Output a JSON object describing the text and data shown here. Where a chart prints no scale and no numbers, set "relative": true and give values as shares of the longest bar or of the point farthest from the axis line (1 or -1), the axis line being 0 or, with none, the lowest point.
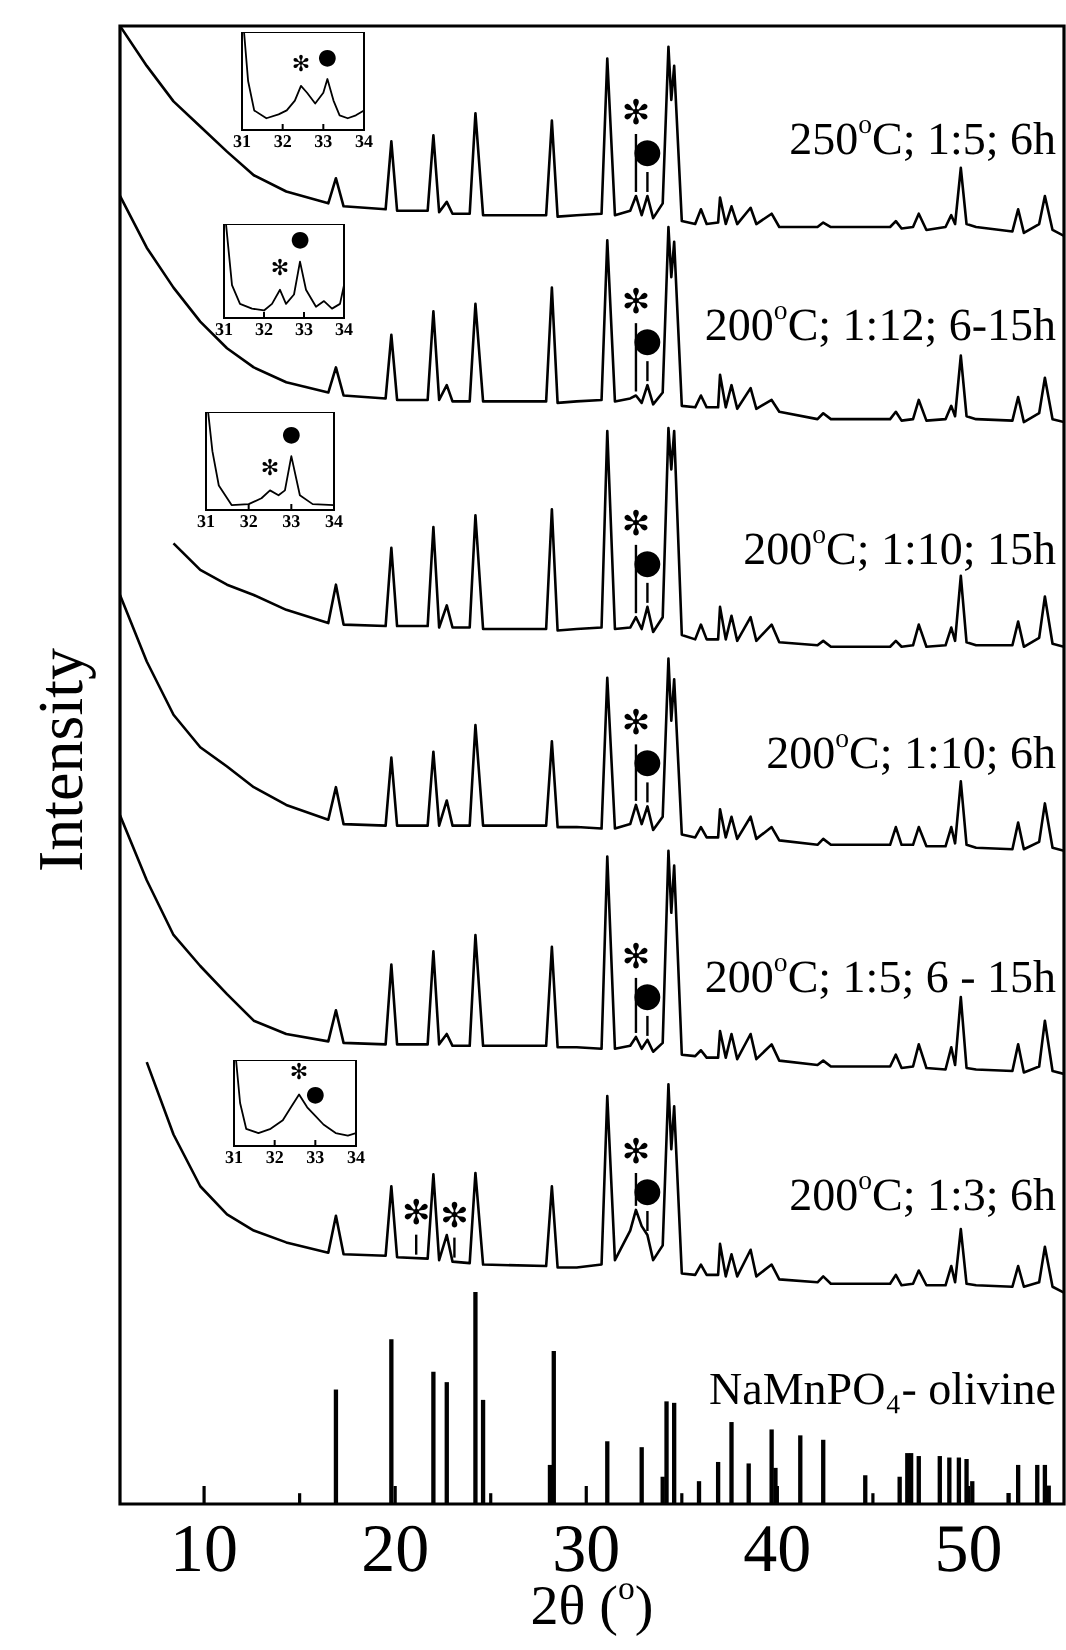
{
  "chart_data": [
    {
      "type": "line",
      "relative": true,
      "xlabel": "2θ ($^{o}$)",
      "ylabel": "Intensity",
      "legend": "right",
      "xlim": [
        5.6,
        55
      ],
      "xticks": [
        10,
        {
          "value": 15,
          "label": null
        },
        20,
        {
          "value": 25,
          "label": null
        },
        30,
        {
          "value": 35,
          "label": null
        },
        40,
        {
          "value": 45,
          "label": null
        },
        50
      ],
      "x": [
        5.6,
        7.0,
        8.4,
        9.8,
        11.2,
        12.6,
        14.3,
        16.5,
        16.9,
        17.3,
        19.5,
        19.8,
        20.1,
        21.7,
        22.0,
        22.3,
        22.7,
        23.0,
        23.9,
        24.2,
        24.6,
        27.9,
        28.2,
        28.5,
        29.5,
        30.8,
        31.1,
        31.5,
        32.3,
        32.6,
        32.9,
        33.2,
        33.5,
        34.0,
        34.3,
        34.45,
        34.6,
        35.0,
        35.7,
        36.0,
        36.3,
        36.9,
        37.0,
        37.3,
        37.6,
        37.9,
        38.6,
        38.9,
        39.7,
        40.1,
        42.1,
        42.4,
        42.8,
        45.9,
        46.2,
        46.5,
        47.1,
        47.4,
        47.8,
        48.8,
        49.1,
        49.3,
        49.6,
        49.9,
        50.4,
        52.3,
        52.6,
        52.9,
        53.7,
        54.0,
        54.4,
        55.0
      ],
      "series": [
        {
          "name": "250$^{o}$C; 1:5; 6h",
          "color": "#000000",
          "values": [
            1.0,
            0.973,
            0.949,
            0.932,
            0.915,
            0.899,
            0.888,
            0.88,
            0.897,
            0.878,
            0.876,
            0.922,
            0.875,
            0.875,
            0.926,
            0.874,
            0.881,
            0.873,
            0.873,
            0.941,
            0.872,
            0.872,
            0.936,
            0.871,
            0.872,
            0.873,
            0.978,
            0.872,
            0.875,
            0.885,
            0.872,
            0.885,
            0.87,
            0.88,
            0.986,
            0.95,
            0.973,
            0.868,
            0.866,
            0.876,
            0.866,
            0.867,
            0.884,
            0.866,
            0.878,
            0.866,
            0.877,
            0.866,
            0.873,
            0.864,
            0.864,
            0.867,
            0.864,
            0.864,
            0.868,
            0.863,
            0.864,
            0.873,
            0.862,
            0.864,
            0.872,
            0.866,
            0.904,
            0.866,
            0.864,
            0.861,
            0.876,
            0.86,
            0.866,
            0.885,
            0.862,
            0.858
          ]
        },
        {
          "name": "200$^{o}$C; 1:12; 6-15h",
          "color": "#000000",
          "values": [
            0.885,
            0.85,
            0.823,
            0.8,
            0.782,
            0.769,
            0.759,
            0.752,
            0.769,
            0.75,
            0.748,
            0.791,
            0.747,
            0.747,
            0.807,
            0.747,
            0.757,
            0.746,
            0.746,
            0.812,
            0.746,
            0.746,
            0.823,
            0.745,
            0.746,
            0.747,
            0.855,
            0.746,
            0.748,
            0.75,
            0.745,
            0.757,
            0.744,
            0.752,
            0.864,
            0.83,
            0.854,
            0.743,
            0.742,
            0.75,
            0.742,
            0.742,
            0.764,
            0.742,
            0.757,
            0.741,
            0.755,
            0.741,
            0.747,
            0.739,
            0.734,
            0.738,
            0.734,
            0.734,
            0.739,
            0.733,
            0.734,
            0.747,
            0.733,
            0.734,
            0.743,
            0.736,
            0.777,
            0.736,
            0.734,
            0.733,
            0.749,
            0.732,
            0.738,
            0.762,
            0.734,
            0.732
          ]
        },
        {
          "name": "200$^{o}$C; 1:10; 15h",
          "color": "#000000",
          "values": [
            null,
            null,
            0.65,
            0.632,
            0.622,
            0.615,
            0.605,
            0.596,
            0.622,
            0.595,
            0.594,
            0.647,
            0.594,
            0.594,
            0.661,
            0.593,
            0.608,
            0.593,
            0.593,
            0.669,
            0.592,
            0.592,
            0.673,
            0.591,
            0.592,
            0.593,
            0.726,
            0.592,
            0.593,
            0.6,
            0.592,
            0.607,
            0.59,
            0.6,
            0.728,
            0.7,
            0.726,
            0.588,
            0.585,
            0.595,
            0.585,
            0.585,
            0.607,
            0.585,
            0.601,
            0.584,
            0.6,
            0.584,
            0.595,
            0.583,
            0.581,
            0.584,
            0.58,
            0.58,
            0.584,
            0.58,
            0.581,
            0.595,
            0.58,
            0.581,
            0.593,
            0.584,
            0.628,
            0.583,
            0.581,
            0.581,
            0.597,
            0.58,
            0.586,
            0.614,
            0.582,
            0.58
          ]
        },
        {
          "name": "200$^{o}$C; 1:10; 6h",
          "color": "#000000",
          "values": [
            0.615,
            0.57,
            0.534,
            0.512,
            0.499,
            0.485,
            0.473,
            0.463,
            0.485,
            0.46,
            0.459,
            0.505,
            0.459,
            0.459,
            0.509,
            0.459,
            0.476,
            0.459,
            0.459,
            0.527,
            0.459,
            0.459,
            0.516,
            0.458,
            0.458,
            0.457,
            0.559,
            0.457,
            0.46,
            0.473,
            0.46,
            0.472,
            0.456,
            0.465,
            0.572,
            0.53,
            0.558,
            0.453,
            0.451,
            0.458,
            0.451,
            0.451,
            0.47,
            0.451,
            0.465,
            0.45,
            0.465,
            0.45,
            0.458,
            0.449,
            0.446,
            0.45,
            0.446,
            0.446,
            0.458,
            0.446,
            0.446,
            0.458,
            0.445,
            0.445,
            0.458,
            0.447,
            0.489,
            0.446,
            0.444,
            0.443,
            0.461,
            0.443,
            0.448,
            0.474,
            0.444,
            0.442
          ]
        },
        {
          "name": "200$^{o}$C; 1:5; 6 - 15h",
          "color": "#000000",
          "values": [
            0.466,
            0.422,
            0.385,
            0.364,
            0.345,
            0.327,
            0.318,
            0.313,
            0.334,
            0.312,
            0.311,
            0.365,
            0.311,
            0.311,
            0.374,
            0.311,
            0.318,
            0.31,
            0.31,
            0.385,
            0.31,
            0.31,
            0.377,
            0.309,
            0.309,
            0.308,
            0.438,
            0.308,
            0.31,
            0.316,
            0.308,
            0.314,
            0.306,
            0.312,
            0.442,
            0.4,
            0.432,
            0.304,
            0.303,
            0.307,
            0.302,
            0.302,
            0.32,
            0.302,
            0.318,
            0.301,
            0.318,
            0.301,
            0.311,
            0.3,
            0.297,
            0.3,
            0.296,
            0.296,
            0.304,
            0.295,
            0.296,
            0.311,
            0.295,
            0.294,
            0.309,
            0.297,
            0.343,
            0.295,
            0.294,
            0.293,
            0.311,
            0.292,
            0.296,
            0.327,
            0.293,
            0.291
          ]
        },
        {
          "name": "200$^{o}$C; 1:3; 6h",
          "color": "#000000",
          "values": [
            null,
            0.299,
            0.25,
            0.215,
            0.196,
            0.185,
            0.177,
            0.17,
            0.195,
            0.169,
            0.168,
            0.215,
            0.167,
            0.166,
            0.223,
            0.165,
            0.182,
            0.164,
            0.163,
            0.224,
            0.162,
            0.161,
            0.215,
            0.16,
            0.16,
            0.162,
            0.276,
            0.165,
            0.185,
            0.199,
            0.188,
            0.182,
            0.165,
            0.175,
            0.284,
            0.24,
            0.269,
            0.156,
            0.155,
            0.162,
            0.155,
            0.155,
            0.176,
            0.154,
            0.169,
            0.154,
            0.172,
            0.154,
            0.162,
            0.152,
            0.15,
            0.154,
            0.149,
            0.149,
            0.155,
            0.148,
            0.149,
            0.158,
            0.148,
            0.148,
            0.161,
            0.15,
            0.186,
            0.149,
            0.148,
            0.147,
            0.161,
            0.147,
            0.15,
            0.174,
            0.147,
            0.143
          ]
        },
        {
          "name": "NaMnPO₄- olivine",
          "type": "bar",
          "color": "#000000",
          "x": [
            16.9,
            19.8,
            22.0,
            22.7,
            24.2,
            24.6,
            28.1,
            28.3,
            31.1,
            32.9,
            34.0,
            34.2,
            34.6,
            35.9,
            36.9,
            37.6,
            38.5,
            39.7,
            39.9,
            41.2,
            42.4,
            44.6,
            46.4,
            46.8,
            47.0,
            47.4,
            48.5,
            49.0,
            49.5,
            49.9,
            50.2,
            52.1,
            52.6,
            53.6,
            54.0,
            54.2
          ],
          "values": [
            0.077,
            0.111,
            0.089,
            0.082,
            0.143,
            0.07,
            0.026,
            0.103,
            0.042,
            0.038,
            0.018,
            0.069,
            0.068,
            0.015,
            0.028,
            0.055,
            0.027,
            0.05,
            0.024,
            0.046,
            0.043,
            0.019,
            0.018,
            0.034,
            0.034,
            0.032,
            0.032,
            0.031,
            0.031,
            0.03,
            0.015,
            0.007,
            0.026,
            0.026,
            0.026,
            0.012
          ]
        }
      ],
      "annotations": [
        {
          "text": "✻",
          "x": 32.6,
          "y": 0.885
        },
        {
          "text": "●",
          "x": 33.2,
          "y": 0.885
        },
        {
          "text": "✻",
          "x": 32.6,
          "y": 0.75
        },
        {
          "text": "●",
          "x": 33.2,
          "y": 0.757
        },
        {
          "text": "✻",
          "x": 32.6,
          "y": 0.6
        },
        {
          "text": "●",
          "x": 33.2,
          "y": 0.607
        },
        {
          "text": "✻",
          "x": 32.6,
          "y": 0.473
        },
        {
          "text": "●",
          "x": 33.2,
          "y": 0.472
        },
        {
          "text": "✻",
          "x": 32.6,
          "y": 0.316
        },
        {
          "text": "●",
          "x": 33.2,
          "y": 0.314
        },
        {
          "text": "✻",
          "x": 21.1,
          "y": 0.166
        },
        {
          "text": "✻",
          "x": 23.1,
          "y": 0.164
        },
        {
          "text": "✻",
          "x": 32.6,
          "y": 0.199
        },
        {
          "text": "●",
          "x": 33.2,
          "y": 0.182
        }
      ]
    },
    {
      "type": "line",
      "relative": true,
      "xlim": [
        31,
        34
      ],
      "xticks": [
        31,
        32,
        33,
        34
      ],
      "tick_labels": "x",
      "color": "#000000",
      "x": [
        31.05,
        31.15,
        31.3,
        31.6,
        31.9,
        32.1,
        32.3,
        32.45,
        32.6,
        32.8,
        33.0,
        33.1,
        33.25,
        33.4,
        33.6,
        33.8,
        34.0
      ],
      "values": [
        1.0,
        0.5,
        0.2,
        0.12,
        0.16,
        0.2,
        0.3,
        0.45,
        0.38,
        0.27,
        0.38,
        0.52,
        0.3,
        0.15,
        0.12,
        0.15,
        0.2
      ],
      "annotations": [
        {
          "text": "✻",
          "x": 32.45,
          "y": 0.45
        },
        {
          "text": "●",
          "x": 33.1,
          "y": 0.52
        }
      ]
    },
    {
      "type": "line",
      "relative": true,
      "xlim": [
        31,
        34
      ],
      "xticks": [
        31,
        32,
        33,
        34
      ],
      "tick_labels": "x",
      "color": "#000000",
      "x": [
        31.05,
        31.2,
        31.4,
        31.7,
        32.0,
        32.2,
        32.4,
        32.55,
        32.75,
        32.9,
        33.05,
        33.3,
        33.5,
        33.7,
        33.9,
        34.0
      ],
      "values": [
        1.0,
        0.35,
        0.15,
        0.1,
        0.08,
        0.15,
        0.3,
        0.15,
        0.25,
        0.6,
        0.3,
        0.12,
        0.18,
        0.1,
        0.15,
        0.35
      ],
      "annotations": [
        {
          "text": "✻",
          "x": 32.4,
          "y": 0.3
        },
        {
          "text": "●",
          "x": 32.9,
          "y": 0.6
        }
      ]
    },
    {
      "type": "line",
      "relative": true,
      "xlim": [
        31,
        34
      ],
      "xticks": [
        31,
        32,
        33,
        34
      ],
      "tick_labels": "x",
      "color": "#000000",
      "x": [
        31.05,
        31.15,
        31.3,
        31.6,
        32.0,
        32.3,
        32.5,
        32.7,
        32.85,
        33.0,
        33.2,
        33.5,
        34.0
      ],
      "values": [
        1.0,
        0.6,
        0.25,
        0.05,
        0.06,
        0.12,
        0.2,
        0.15,
        0.2,
        0.55,
        0.15,
        0.06,
        0.05
      ],
      "annotations": [
        {
          "text": "✻",
          "x": 32.5,
          "y": 0.2
        },
        {
          "text": "●",
          "x": 33.0,
          "y": 0.55
        }
      ]
    },
    {
      "type": "line",
      "relative": true,
      "xlim": [
        31,
        34
      ],
      "xticks": [
        31,
        32,
        33,
        34
      ],
      "tick_labels": "x",
      "color": "#000000",
      "x": [
        31.05,
        31.15,
        31.3,
        31.6,
        31.9,
        32.2,
        32.4,
        32.6,
        32.8,
        33.0,
        33.2,
        33.5,
        33.8,
        34.0
      ],
      "values": [
        1.0,
        0.5,
        0.2,
        0.15,
        0.2,
        0.3,
        0.45,
        0.6,
        0.45,
        0.35,
        0.25,
        0.15,
        0.12,
        0.15
      ],
      "annotations": [
        {
          "text": "✻",
          "x": 32.6,
          "y": 0.6
        },
        {
          "text": "●",
          "x": 33.0,
          "y": 0.35
        }
      ]
    }
  ]
}
